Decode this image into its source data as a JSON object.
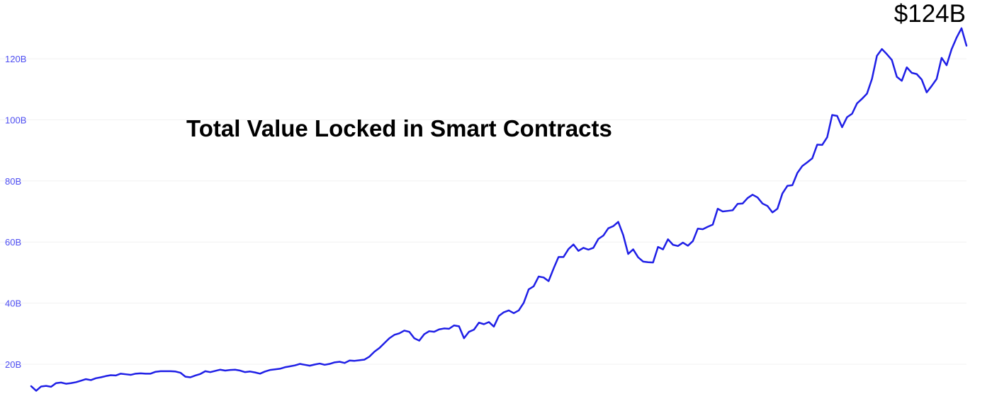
{
  "chart_data": {
    "type": "line",
    "title": "Total Value Locked in Smart Contracts",
    "latest_label": "$124B",
    "xlabel": "",
    "ylabel": "",
    "ylim": [
      10,
      131
    ],
    "y_ticks": [
      {
        "value": 20,
        "label": "20B"
      },
      {
        "value": 40,
        "label": "40B"
      },
      {
        "value": 60,
        "label": "60B"
      },
      {
        "value": 80,
        "label": "80B"
      },
      {
        "value": 100,
        "label": "100B"
      },
      {
        "value": 120,
        "label": "120B"
      }
    ],
    "grid": true,
    "colors": {
      "line": "#1f1fe6",
      "tick_label": "#4d4df2",
      "grid": "#f1f1f1"
    },
    "series": [
      {
        "values": [
          12.8,
          11.3,
          12.7,
          12.9,
          12.6,
          13.8,
          14.0,
          13.6,
          13.8,
          14.1,
          14.6,
          15.1,
          14.8,
          15.4,
          15.7,
          16.1,
          16.4,
          16.3,
          16.9,
          16.7,
          16.5,
          16.9,
          17.0,
          16.9,
          16.9,
          17.5,
          17.7,
          17.7,
          17.7,
          17.6,
          17.2,
          15.9,
          15.7,
          16.3,
          16.8,
          17.7,
          17.4,
          17.8,
          18.2,
          17.9,
          18.1,
          18.2,
          17.9,
          17.4,
          17.6,
          17.3,
          16.9,
          17.6,
          18.1,
          18.3,
          18.5,
          19.0,
          19.3,
          19.6,
          20.1,
          19.8,
          19.5,
          19.9,
          20.2,
          19.8,
          20.1,
          20.6,
          20.8,
          20.4,
          21.2,
          21.1,
          21.3,
          21.5,
          22.5,
          24.1,
          25.3,
          26.9,
          28.5,
          29.6,
          30.1,
          31.0,
          30.6,
          28.5,
          27.7,
          29.8,
          30.8,
          30.6,
          31.4,
          31.7,
          31.6,
          32.7,
          32.4,
          28.5,
          30.6,
          31.3,
          33.6,
          33.1,
          33.8,
          32.3,
          35.8,
          37.0,
          37.6,
          36.7,
          37.6,
          40.1,
          44.5,
          45.5,
          48.7,
          48.4,
          47.2,
          51.3,
          55.1,
          55.1,
          57.7,
          59.2,
          57.1,
          58.1,
          57.5,
          58.1,
          61.0,
          62.1,
          64.5,
          65.2,
          66.6,
          62.3,
          56.1,
          57.6,
          55.0,
          53.6,
          53.4,
          53.3,
          58.4,
          57.6,
          60.9,
          59.1,
          58.7,
          59.8,
          58.8,
          60.3,
          64.4,
          64.2,
          65.0,
          65.7,
          70.9,
          70.0,
          70.2,
          70.4,
          72.5,
          72.6,
          74.4,
          75.5,
          74.6,
          72.6,
          71.8,
          69.7,
          70.9,
          75.9,
          78.4,
          78.6,
          82.6,
          84.9,
          86.1,
          87.4,
          91.9,
          91.8,
          94.3,
          101.6,
          101.3,
          97.6,
          100.9,
          102.0,
          105.4,
          106.9,
          108.6,
          113.4,
          121.0,
          123.2,
          121.5,
          119.6,
          114.1,
          112.8,
          117.2,
          115.4,
          115.0,
          113.2,
          109.0,
          111.1,
          113.4,
          120.3,
          117.9,
          123.1,
          126.9,
          130.0,
          124.3
        ]
      }
    ]
  }
}
